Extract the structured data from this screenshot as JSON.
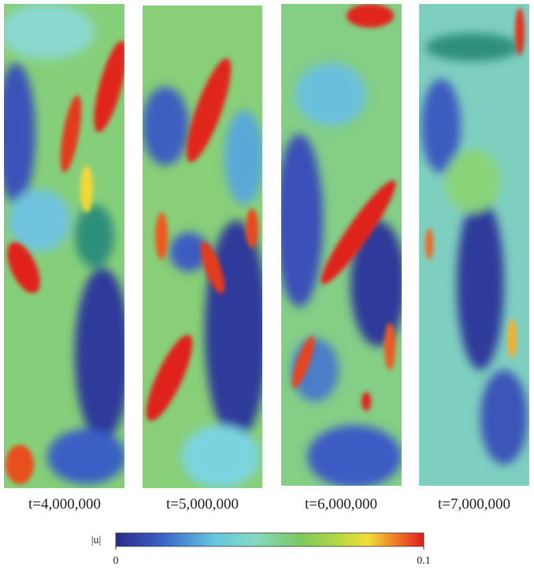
{
  "panels": [
    {
      "label": "t=4,000,000"
    },
    {
      "label": "t=5,000,000"
    },
    {
      "label": "t=6,000,000"
    },
    {
      "label": "t=7,000,000"
    }
  ],
  "colorbar": {
    "label": "|u|",
    "ticks": [
      0,
      0.1
    ]
  }
}
